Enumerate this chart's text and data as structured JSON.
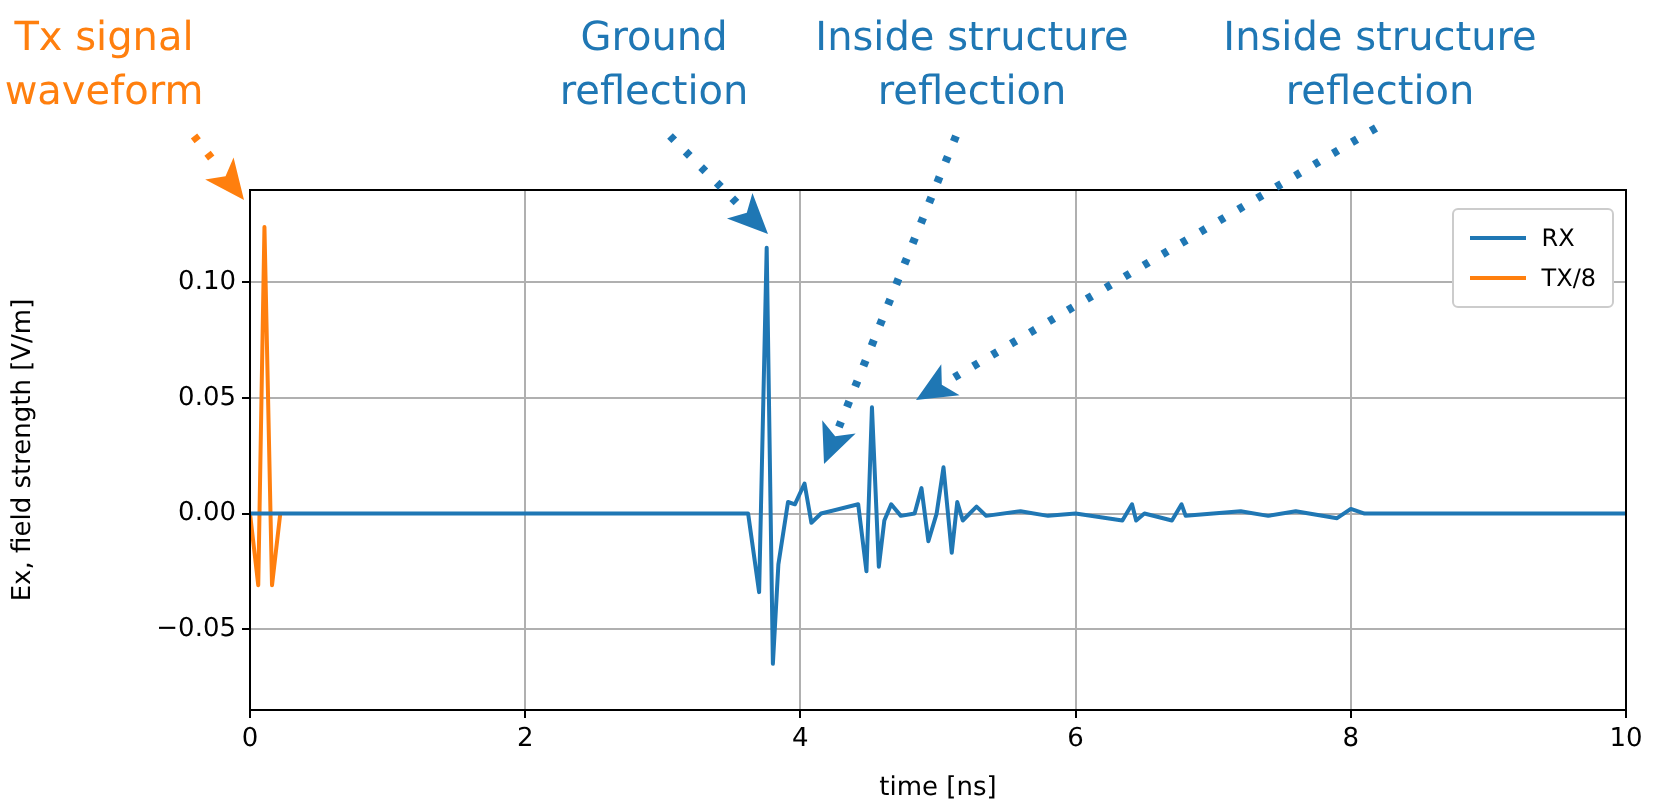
{
  "chart_data": {
    "type": "line",
    "xlabel": "time [ns]",
    "ylabel": "Ex, field strength [V/m]",
    "xlim": [
      0,
      10
    ],
    "ylim": [
      -0.085,
      0.14
    ],
    "xticks": [
      0,
      2,
      4,
      6,
      8,
      10
    ],
    "yticks": [
      {
        "value": -0.05,
        "label": "−0.05"
      },
      {
        "value": 0,
        "label": "0.00"
      },
      {
        "value": 0.05,
        "label": "0.05"
      },
      {
        "value": 0.1,
        "label": "0.10"
      }
    ],
    "grid": true,
    "legend": "top right",
    "marker": "none",
    "line_style": "solid",
    "series": [
      {
        "name": "RX",
        "color": "#1f77b4",
        "x": [
          0,
          3.62,
          3.7,
          3.755,
          3.8,
          3.84,
          3.91,
          3.96,
          4.03,
          4.08,
          4.15,
          4.42,
          4.48,
          4.52,
          4.57,
          4.61,
          4.66,
          4.73,
          4.83,
          4.88,
          4.93,
          4.99,
          5.04,
          5.1,
          5.14,
          5.18,
          5.28,
          5.35,
          5.6,
          5.8,
          6.0,
          6.34,
          6.41,
          6.44,
          6.5,
          6.7,
          6.77,
          6.8,
          7.2,
          7.4,
          7.6,
          7.9,
          8.0,
          8.1,
          10
        ],
        "values": [
          0,
          0,
          -0.034,
          0.115,
          -0.065,
          -0.022,
          0.005,
          0.004,
          0.013,
          -0.004,
          0,
          0.004,
          -0.025,
          0.046,
          -0.023,
          -0.003,
          0.004,
          -0.001,
          0,
          0.011,
          -0.012,
          0,
          0.02,
          -0.017,
          0.005,
          -0.003,
          0.003,
          -0.001,
          0.001,
          -0.001,
          0,
          -0.003,
          0.004,
          -0.003,
          0,
          -0.003,
          0.004,
          -0.001,
          0.001,
          -0.001,
          0.001,
          -0.002,
          0.002,
          0,
          0
        ]
      },
      {
        "name": "TX/8",
        "color": "#ff7f0e",
        "x": [
          0,
          0.06,
          0.105,
          0.16,
          0.22
        ],
        "values": [
          0,
          -0.031,
          0.124,
          -0.031,
          0
        ]
      }
    ],
    "annotations": [
      "Tx signal\nwaveform",
      "Ground\nreflection",
      "Inside structure\nreflection",
      "Inside structure\nreflection"
    ]
  }
}
